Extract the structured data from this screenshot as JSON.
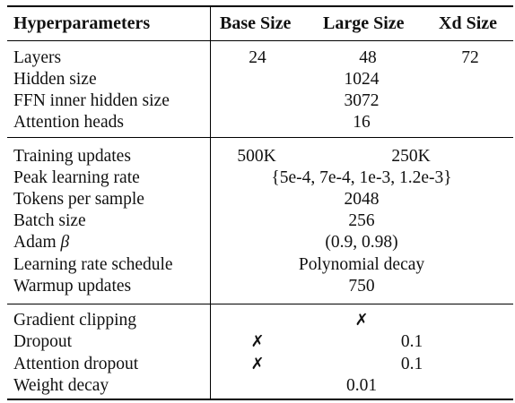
{
  "header": {
    "col0": "Hyperparameters",
    "col1": "Base Size",
    "col2": "Large Size",
    "col3": "Xd Size"
  },
  "section1": {
    "layers": {
      "label": "Layers",
      "base": "24",
      "large": "48",
      "xd": "72"
    },
    "hidden_size": {
      "label": "Hidden size",
      "value": "1024"
    },
    "ffn": {
      "label": "FFN inner hidden size",
      "value": "3072"
    },
    "heads": {
      "label": "Attention heads",
      "value": "16"
    }
  },
  "section2": {
    "training_updates": {
      "label": "Training updates",
      "base": "500K",
      "large": "250K"
    },
    "peak_lr": {
      "label": "Peak learning rate",
      "value": "{5e-4, 7e-4, 1e-3, 1.2e-3}"
    },
    "tokens": {
      "label": "Tokens per sample",
      "value": "2048"
    },
    "batch": {
      "label": "Batch size",
      "value": "256"
    },
    "adam": {
      "label": "Adam",
      "symbol": "β",
      "value": "(0.9, 0.98)"
    },
    "schedule": {
      "label": "Learning rate schedule",
      "value": "Polynomial decay"
    },
    "warmup": {
      "label": "Warmup updates",
      "value": "750"
    }
  },
  "section3": {
    "clipping": {
      "label": "Gradient clipping",
      "value": "✗"
    },
    "dropout": {
      "label": "Dropout",
      "base": "✗",
      "other": "0.1"
    },
    "att_dropout": {
      "label": "Attention dropout",
      "base": "✗",
      "other": "0.1"
    },
    "weight_decay": {
      "label": "Weight decay",
      "value": "0.01"
    }
  }
}
